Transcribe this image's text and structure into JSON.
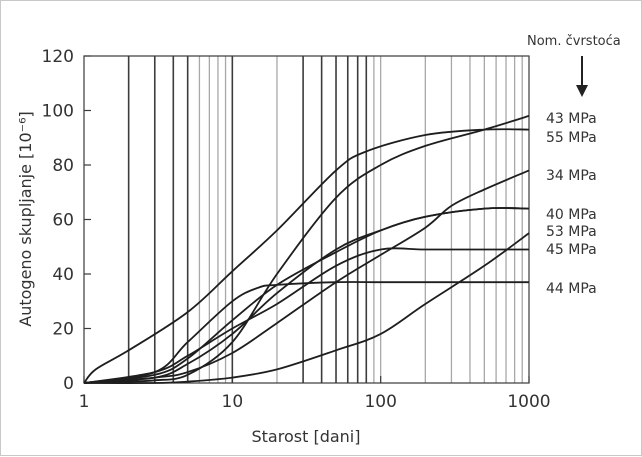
{
  "chart_data": {
    "type": "line",
    "title": "",
    "xlabel": "Starost [dani]",
    "ylabel": "Autogeno skupljanje [10⁻⁶]",
    "xscale": "log",
    "xlim": [
      1,
      1000
    ],
    "ylim": [
      0,
      120
    ],
    "x_ticks": [
      1,
      10,
      100,
      1000
    ],
    "x_tick_labels": [
      "1",
      "10",
      "100",
      "1000"
    ],
    "y_ticks": [
      0,
      20,
      40,
      60,
      80,
      100,
      120
    ],
    "y_tick_labels": [
      "0",
      "20",
      "40",
      "60",
      "80",
      "100",
      "120"
    ],
    "grid": "vertical lines at each day 1–9, 10–90, 100–900",
    "legend_title": "Nom. čvrstoća",
    "legend_placement": "right",
    "series": [
      {
        "name": "43 MPa",
        "x": [
          1,
          2,
          3,
          5,
          10,
          20,
          50,
          100,
          200,
          500,
          1000
        ],
        "y": [
          0,
          0.5,
          1,
          3,
          15,
          40,
          68,
          80,
          87,
          93,
          98
        ]
      },
      {
        "name": "55 MPa",
        "x": [
          1,
          1.2,
          2,
          5,
          10,
          20,
          50,
          80,
          200,
          500,
          1000
        ],
        "y": [
          0,
          5,
          12,
          26,
          41,
          56,
          78,
          85,
          91,
          93,
          93
        ]
      },
      {
        "name": "34 MPa",
        "x": [
          1,
          3,
          5,
          10,
          20,
          50,
          100,
          200,
          300,
          500,
          1000
        ],
        "y": [
          0,
          2,
          4,
          11,
          22,
          37,
          47,
          57,
          65,
          71,
          78
        ]
      },
      {
        "name": "40 MPa",
        "x": [
          1,
          3,
          5,
          10,
          20,
          50,
          100,
          200,
          500,
          1000
        ],
        "y": [
          0,
          2,
          7,
          18,
          33,
          49,
          56,
          61,
          64,
          64
        ]
      },
      {
        "name": "53 MPa",
        "x": [
          1,
          3,
          5,
          10,
          20,
          50,
          100,
          200,
          500,
          1000
        ],
        "y": [
          0,
          3,
          9,
          23,
          36,
          48,
          56,
          61,
          64,
          64
        ]
      },
      {
        "name": "45 MPa",
        "x": [
          1,
          3,
          5,
          10,
          20,
          50,
          100,
          200,
          500,
          1000
        ],
        "y": [
          0,
          4,
          10,
          20,
          29,
          43,
          49,
          49,
          49,
          49
        ]
      },
      {
        "name": "44 MPa",
        "x": [
          1,
          3,
          5,
          10,
          15,
          20,
          50,
          100,
          200,
          500,
          1000
        ],
        "y": [
          0,
          4,
          15,
          30,
          35,
          36,
          37,
          37,
          37,
          37,
          37
        ]
      },
      {
        "name": "",
        "x": [
          1,
          3,
          5,
          10,
          20,
          50,
          100,
          200,
          500,
          1000
        ],
        "y": [
          0,
          0,
          0.5,
          2,
          5,
          12,
          18,
          29,
          43,
          55
        ]
      }
    ]
  }
}
